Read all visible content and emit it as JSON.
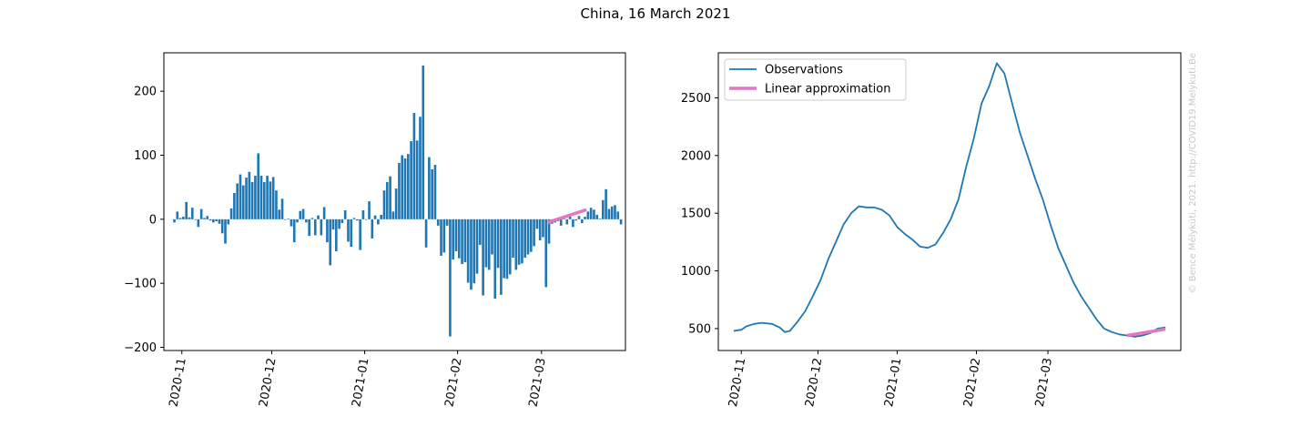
{
  "figure": {
    "title": "China, 16 March 2021",
    "watermark": "© Bence Mélykúti, 2021. http://COVID19.Melykuti.Be"
  },
  "colors": {
    "bars": "#1f77b4",
    "line": "#1f77b4",
    "fit": "#e377c2"
  },
  "chart_data": [
    {
      "type": "bar",
      "title": "",
      "xlabel": "",
      "ylabel": "",
      "x_ticks": [
        "2020-11",
        "2020-12",
        "2021-01",
        "2021-02",
        "2021-03"
      ],
      "y_ticks": [
        -200,
        -100,
        0,
        100,
        200
      ],
      "ylim": [
        -205,
        260
      ],
      "x_start": "2020-10-29",
      "values": [
        -5,
        12,
        2,
        4,
        27,
        3,
        18,
        -1,
        -12,
        16,
        2,
        5,
        -2,
        -5,
        -3,
        -7,
        -22,
        -38,
        -8,
        17,
        41,
        56,
        70,
        53,
        65,
        74,
        58,
        68,
        103,
        68,
        58,
        68,
        59,
        66,
        45,
        15,
        32,
        -1,
        1,
        -11,
        -36,
        -5,
        13,
        16,
        -5,
        -26,
        2,
        -25,
        6,
        -25,
        19,
        -36,
        -72,
        -16,
        -50,
        -15,
        -6,
        14,
        -35,
        -43,
        2,
        -2,
        -48,
        14,
        -1,
        28,
        -30,
        6,
        -8,
        7,
        45,
        58,
        67,
        12,
        48,
        88,
        100,
        95,
        102,
        122,
        166,
        123,
        160,
        240,
        -44,
        97,
        78,
        85,
        -10,
        -57,
        -52,
        -10,
        -183,
        -63,
        -50,
        -61,
        -70,
        -67,
        -99,
        -110,
        -100,
        -85,
        -40,
        -119,
        -75,
        -79,
        -55,
        -124,
        -76,
        -118,
        -92,
        -93,
        -86,
        -60,
        -79,
        -71,
        -69,
        -60,
        -55,
        -51,
        -42,
        -15,
        -33,
        -28,
        -106,
        -38,
        -7,
        -5,
        -3,
        -10,
        1,
        -8,
        4,
        -12,
        -2,
        5,
        -6,
        4,
        12,
        18,
        15,
        7,
        1,
        30,
        47,
        16,
        20,
        22,
        12,
        -8
      ],
      "fit": {
        "name": "Linear approximation",
        "x": [
          "2021-03-03",
          "2021-03-16"
        ],
        "y": [
          -5,
          15
        ]
      }
    },
    {
      "type": "line",
      "title": "",
      "xlabel": "",
      "ylabel": "",
      "x_ticks": [
        "2020-11",
        "2020-12",
        "2021-01",
        "2021-02",
        "2021-03"
      ],
      "y_ticks": [
        500,
        1000,
        1500,
        2000,
        2500
      ],
      "ylim": [
        310,
        2890
      ],
      "legend_position": "top-left",
      "series": [
        {
          "name": "Observations",
          "points": [
            [
              "2020-10-29",
              480
            ],
            [
              "2020-11-01",
              490
            ],
            [
              "2020-11-03",
              520
            ],
            [
              "2020-11-06",
              540
            ],
            [
              "2020-11-09",
              550
            ],
            [
              "2020-11-13",
              540
            ],
            [
              "2020-11-16",
              510
            ],
            [
              "2020-11-18",
              470
            ],
            [
              "2020-11-20",
              480
            ],
            [
              "2020-11-23",
              560
            ],
            [
              "2020-11-26",
              650
            ],
            [
              "2020-11-29",
              780
            ],
            [
              "2020-12-02",
              920
            ],
            [
              "2020-12-05",
              1100
            ],
            [
              "2020-12-08",
              1250
            ],
            [
              "2020-12-11",
              1400
            ],
            [
              "2020-12-14",
              1500
            ],
            [
              "2020-12-17",
              1560
            ],
            [
              "2020-12-20",
              1550
            ],
            [
              "2020-12-23",
              1550
            ],
            [
              "2020-12-26",
              1530
            ],
            [
              "2020-12-29",
              1480
            ],
            [
              "2021-01-01",
              1380
            ],
            [
              "2021-01-04",
              1320
            ],
            [
              "2021-01-07",
              1270
            ],
            [
              "2021-01-10",
              1210
            ],
            [
              "2021-01-13",
              1200
            ],
            [
              "2021-01-16",
              1230
            ],
            [
              "2021-01-19",
              1330
            ],
            [
              "2021-01-22",
              1450
            ],
            [
              "2021-01-25",
              1620
            ],
            [
              "2021-01-28",
              1900
            ],
            [
              "2021-01-31",
              2150
            ],
            [
              "2021-02-03",
              2450
            ],
            [
              "2021-02-06",
              2600
            ],
            [
              "2021-02-09",
              2800
            ],
            [
              "2021-02-12",
              2710
            ],
            [
              "2021-02-15",
              2450
            ],
            [
              "2021-02-18",
              2200
            ],
            [
              "2021-02-21",
              2000
            ],
            [
              "2021-02-24",
              1800
            ],
            [
              "2021-02-27",
              1620
            ],
            [
              "2021-03-02",
              1400
            ],
            [
              "2021-03-05",
              1200
            ],
            [
              "2021-03-08",
              1050
            ],
            [
              "2021-03-11",
              900
            ],
            [
              "2021-03-14",
              780
            ],
            [
              "2021-03-17",
              680
            ],
            [
              "2021-03-20",
              580
            ],
            [
              "2021-03-23",
              500
            ],
            [
              "2021-03-26",
              470
            ],
            [
              "2021-03-29",
              450
            ],
            [
              "2021-04-01",
              440
            ],
            [
              "2021-04-04",
              430
            ],
            [
              "2021-04-07",
              440
            ],
            [
              "2021-04-10",
              460
            ],
            [
              "2021-04-13",
              500
            ],
            [
              "2021-04-16",
              510
            ]
          ]
        },
        {
          "name": "Linear approximation",
          "points": [
            [
              "2021-04-01",
              440
            ],
            [
              "2021-04-16",
              495
            ]
          ]
        }
      ]
    }
  ]
}
